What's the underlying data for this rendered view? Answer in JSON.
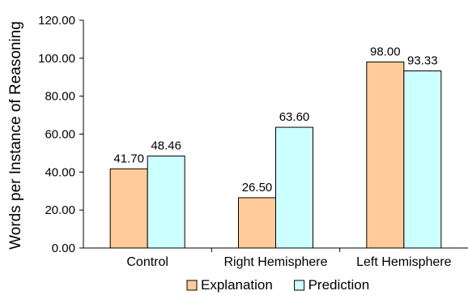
{
  "chart_data": {
    "type": "bar",
    "title": "",
    "xlabel": "",
    "ylabel": "Words per Instance of Reasoning",
    "ylim": [
      0,
      120
    ],
    "yticks": [
      "0.00",
      "20.00",
      "40.00",
      "60.00",
      "80.00",
      "100.00",
      "120.00"
    ],
    "categories": [
      "Control",
      "Right Hemisphere",
      "Left Hemisphere"
    ],
    "series": [
      {
        "name": "Explanation",
        "values": [
          41.7,
          26.5,
          98.0
        ],
        "labels": [
          "41.70",
          "26.50",
          "98.00"
        ],
        "color": "#FFCC99"
      },
      {
        "name": "Prediction",
        "values": [
          48.46,
          63.6,
          93.33
        ],
        "labels": [
          "48.46",
          "63.60",
          "93.33"
        ],
        "color": "#CCFFFF"
      }
    ],
    "grid": false,
    "legend_position": "bottom"
  }
}
